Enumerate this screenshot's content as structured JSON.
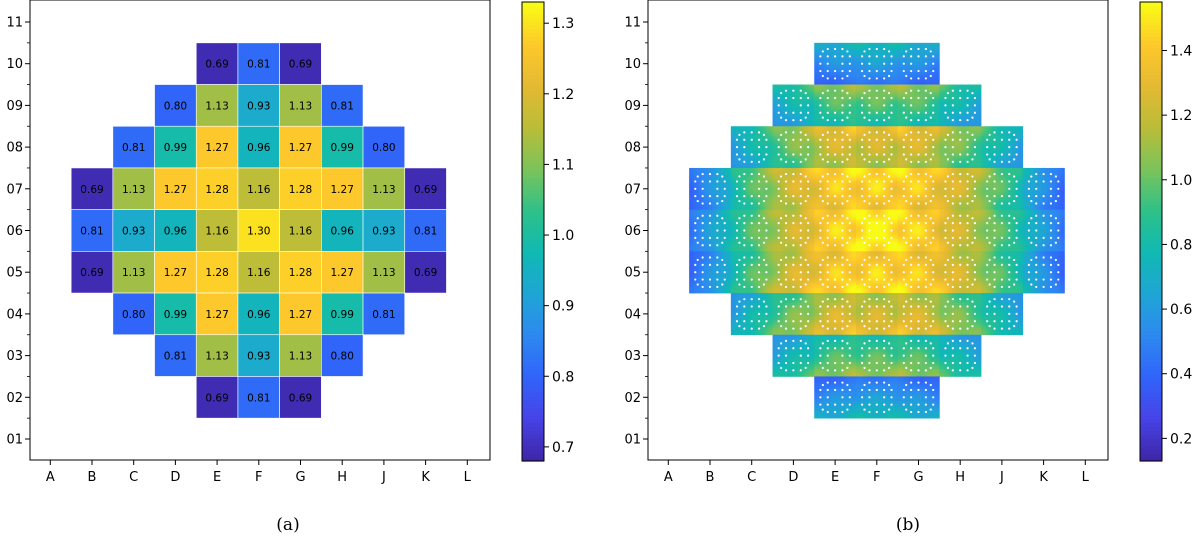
{
  "chart_data": [
    {
      "type": "heatmap",
      "caption": "(a)",
      "x_tick_labels": [
        "A",
        "B",
        "C",
        "D",
        "E",
        "F",
        "G",
        "H",
        "J",
        "K",
        "L"
      ],
      "y_tick_labels": [
        "01",
        "02",
        "03",
        "04",
        "05",
        "06",
        "07",
        "08",
        "09",
        "10",
        "11"
      ],
      "colorbar": {
        "range": [
          0.68,
          1.33
        ],
        "ticks": [
          0.7,
          0.8,
          0.9,
          1.0,
          1.1,
          1.2,
          1.3
        ],
        "tick_labels": [
          "0.7",
          "0.8",
          "0.9",
          "1.0",
          "1.1",
          "1.2",
          "1.3"
        ]
      },
      "rows": [
        {
          "row": "10",
          "start_col": "E",
          "values": [
            0.69,
            0.81,
            0.69
          ]
        },
        {
          "row": "09",
          "start_col": "D",
          "values": [
            0.8,
            1.13,
            0.93,
            1.13,
            0.81
          ]
        },
        {
          "row": "08",
          "start_col": "C",
          "values": [
            0.81,
            0.99,
            1.27,
            0.96,
            1.27,
            0.99,
            0.8
          ]
        },
        {
          "row": "07",
          "start_col": "B",
          "values": [
            0.69,
            1.13,
            1.27,
            1.28,
            1.16,
            1.28,
            1.27,
            1.13,
            0.69
          ]
        },
        {
          "row": "06",
          "start_col": "B",
          "values": [
            0.81,
            0.93,
            0.96,
            1.16,
            1.3,
            1.16,
            0.96,
            0.93,
            0.81
          ]
        },
        {
          "row": "05",
          "start_col": "B",
          "values": [
            0.69,
            1.13,
            1.27,
            1.28,
            1.16,
            1.28,
            1.27,
            1.13,
            0.69
          ]
        },
        {
          "row": "04",
          "start_col": "C",
          "values": [
            0.8,
            0.99,
            1.27,
            0.96,
            1.27,
            0.99,
            0.81
          ]
        },
        {
          "row": "03",
          "start_col": "D",
          "values": [
            0.81,
            1.13,
            0.93,
            1.13,
            0.8
          ]
        },
        {
          "row": "02",
          "start_col": "E",
          "values": [
            0.69,
            0.81,
            0.69
          ]
        }
      ]
    },
    {
      "type": "heatmap",
      "caption": "(b)",
      "x_tick_labels": [
        "A",
        "B",
        "C",
        "D",
        "E",
        "F",
        "G",
        "H",
        "J",
        "K",
        "L"
      ],
      "y_tick_labels": [
        "01",
        "02",
        "03",
        "04",
        "05",
        "06",
        "07",
        "08",
        "09",
        "10",
        "11"
      ],
      "colorbar": {
        "range": [
          0.13,
          1.55
        ],
        "ticks": [
          0.2,
          0.4,
          0.6,
          0.8,
          1.0,
          1.2,
          1.4
        ],
        "tick_labels": [
          "0.2",
          "0.4",
          "0.6",
          "0.8",
          "1.0",
          "1.2",
          "1.4"
        ]
      },
      "pin_pattern": "17x17 pin lattice per assembly with white guide-tube holes",
      "assembly_power_source": "same assembly layout as (a), pin-level power distribution"
    }
  ],
  "colormap": [
    "#3e26a8",
    "#4743e7",
    "#3164fa",
    "#2d89f0",
    "#1fa5d5",
    "#10b9b3",
    "#2ec189",
    "#7ac35b",
    "#b9bd39",
    "#e3b933",
    "#fdc82b",
    "#f9fb15"
  ]
}
